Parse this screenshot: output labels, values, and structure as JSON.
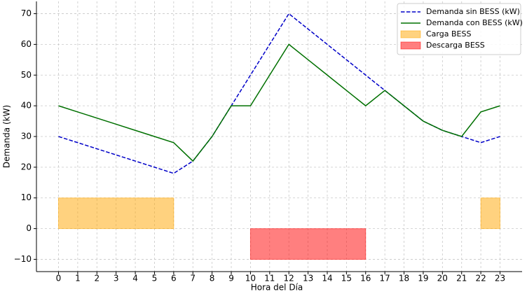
{
  "chart_data": {
    "type": "line",
    "x_label": "Hora del Día",
    "y_label": "Demanda (kW)",
    "x": [
      0,
      1,
      2,
      3,
      4,
      5,
      6,
      7,
      8,
      9,
      10,
      11,
      12,
      13,
      14,
      15,
      16,
      17,
      18,
      19,
      20,
      21,
      22,
      23
    ],
    "xlim": [
      -1.15,
      24.15
    ],
    "xticks": [
      0,
      1,
      2,
      3,
      4,
      5,
      6,
      7,
      8,
      9,
      10,
      11,
      12,
      13,
      14,
      15,
      16,
      17,
      18,
      19,
      20,
      21,
      22,
      23
    ],
    "ylim": [
      -14,
      74
    ],
    "yticks": [
      {
        "value": -10,
        "label": "−10"
      },
      0,
      10,
      20,
      30,
      40,
      50,
      60,
      70
    ],
    "grid": true,
    "legend": "upper right",
    "series": [
      {
        "name": "Demanda sin BESS (kW)",
        "type": "line",
        "style": "dashed",
        "color": "#0000c8",
        "values": [
          30,
          28,
          26,
          24,
          22,
          20,
          18,
          22,
          30,
          40,
          50,
          60,
          70,
          65,
          60,
          55,
          50,
          45,
          40,
          35,
          32,
          30,
          28,
          30
        ]
      },
      {
        "name": "Demanda con BESS (kW)",
        "type": "line",
        "style": "solid",
        "color": "#007000",
        "values": [
          40,
          38,
          36,
          34,
          32,
          30,
          28,
          22,
          30,
          40,
          40,
          50,
          60,
          55,
          50,
          45,
          40,
          45,
          40,
          35,
          32,
          30,
          38,
          40
        ]
      },
      {
        "name": "Carga BESS",
        "type": "area",
        "color": "#ffa500",
        "opacity": 0.5,
        "values": [
          10,
          10,
          10,
          10,
          10,
          10,
          10,
          null,
          null,
          null,
          null,
          null,
          null,
          null,
          null,
          null,
          null,
          null,
          null,
          null,
          null,
          null,
          10,
          10
        ]
      },
      {
        "name": "Descarga BESS",
        "type": "area",
        "color": "#ff0000",
        "opacity": 0.5,
        "values": [
          null,
          null,
          null,
          null,
          null,
          null,
          null,
          null,
          null,
          null,
          -10,
          -10,
          -10,
          -10,
          -10,
          -10,
          -10,
          null,
          null,
          null,
          null,
          null,
          null,
          null
        ]
      }
    ]
  }
}
